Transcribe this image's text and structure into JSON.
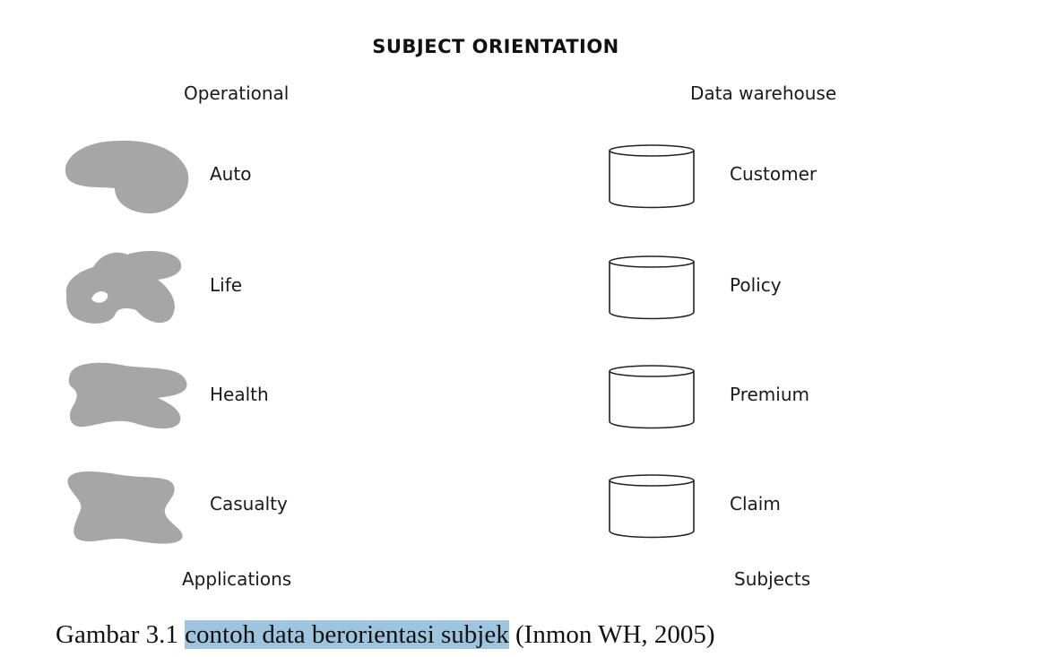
{
  "title": "SUBJECT ORIENTATION",
  "operational": {
    "heading": "Operational",
    "footer": "Applications",
    "items": [
      {
        "label": "Auto"
      },
      {
        "label": "Life"
      },
      {
        "label": "Health"
      },
      {
        "label": "Casualty"
      }
    ]
  },
  "warehouse": {
    "heading": "Data warehouse",
    "footer": "Subjects",
    "items": [
      {
        "label": "Customer"
      },
      {
        "label": "Policy"
      },
      {
        "label": "Premium"
      },
      {
        "label": "Claim"
      }
    ]
  },
  "caption": {
    "prefix": "Gambar 3.1 ",
    "highlight": "contoh data berorientasi subjek",
    "suffix": " (Inmon WH, 2005)"
  },
  "colors": {
    "blob": "#a6a6a6",
    "highlight": "#9ec4de"
  }
}
